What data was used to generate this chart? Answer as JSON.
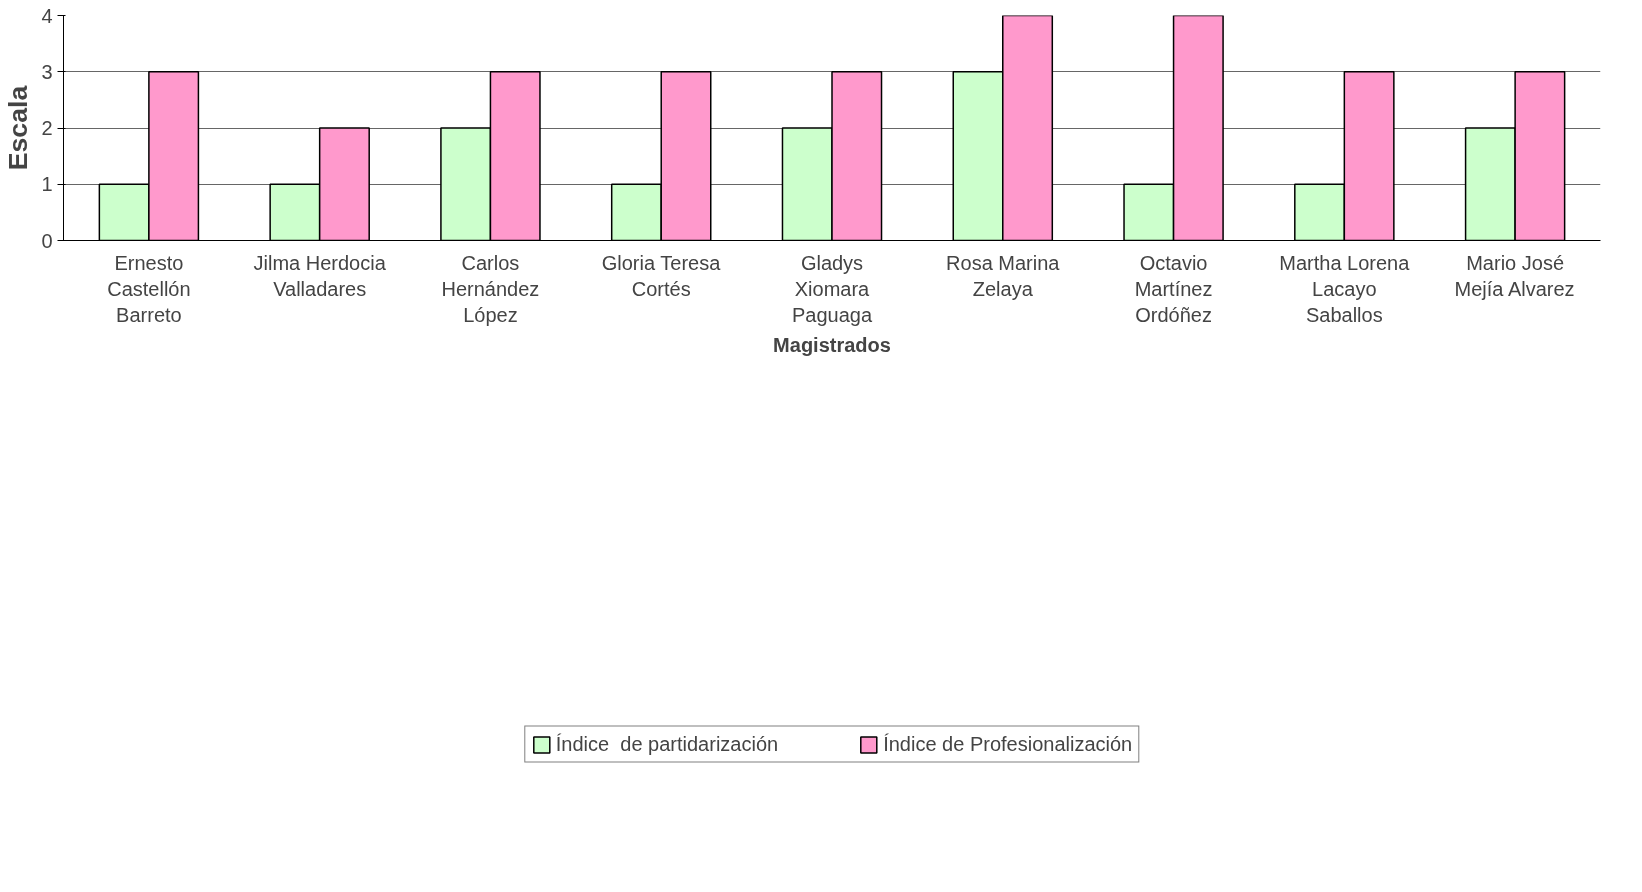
{
  "chart_data": {
    "type": "bar",
    "xlabel": "Magistrados",
    "ylabel": "Escala",
    "categories": [
      "Ernesto\nCastellón\nBarreto",
      "Jilma Herdocia\nValladares",
      "Carlos\nHernández\nLópez",
      "Gloria Teresa\nCortés",
      "Gladys\nXiomara\nPaguaga",
      "Rosa Marina\nZelaya",
      "Octavio\nMartínez\nOrdóñez",
      "Martha Lorena\nLacayo\nSaballos",
      "Mario José\nMejía Alvarez"
    ],
    "series": [
      {
        "name": "Índice  de partidarización",
        "color": "#ccffcc",
        "values": [
          1,
          1,
          2,
          1,
          2,
          3,
          1,
          1,
          2
        ]
      },
      {
        "name": "Índice de Profesionalización",
        "color": "#ff99cc",
        "values": [
          3,
          2,
          3,
          3,
          3,
          4,
          4,
          3,
          3
        ]
      }
    ],
    "ylim": [
      0,
      4
    ],
    "yticks": [
      0,
      1,
      2,
      3,
      4
    ],
    "grid": "y",
    "legend": "bottom"
  }
}
